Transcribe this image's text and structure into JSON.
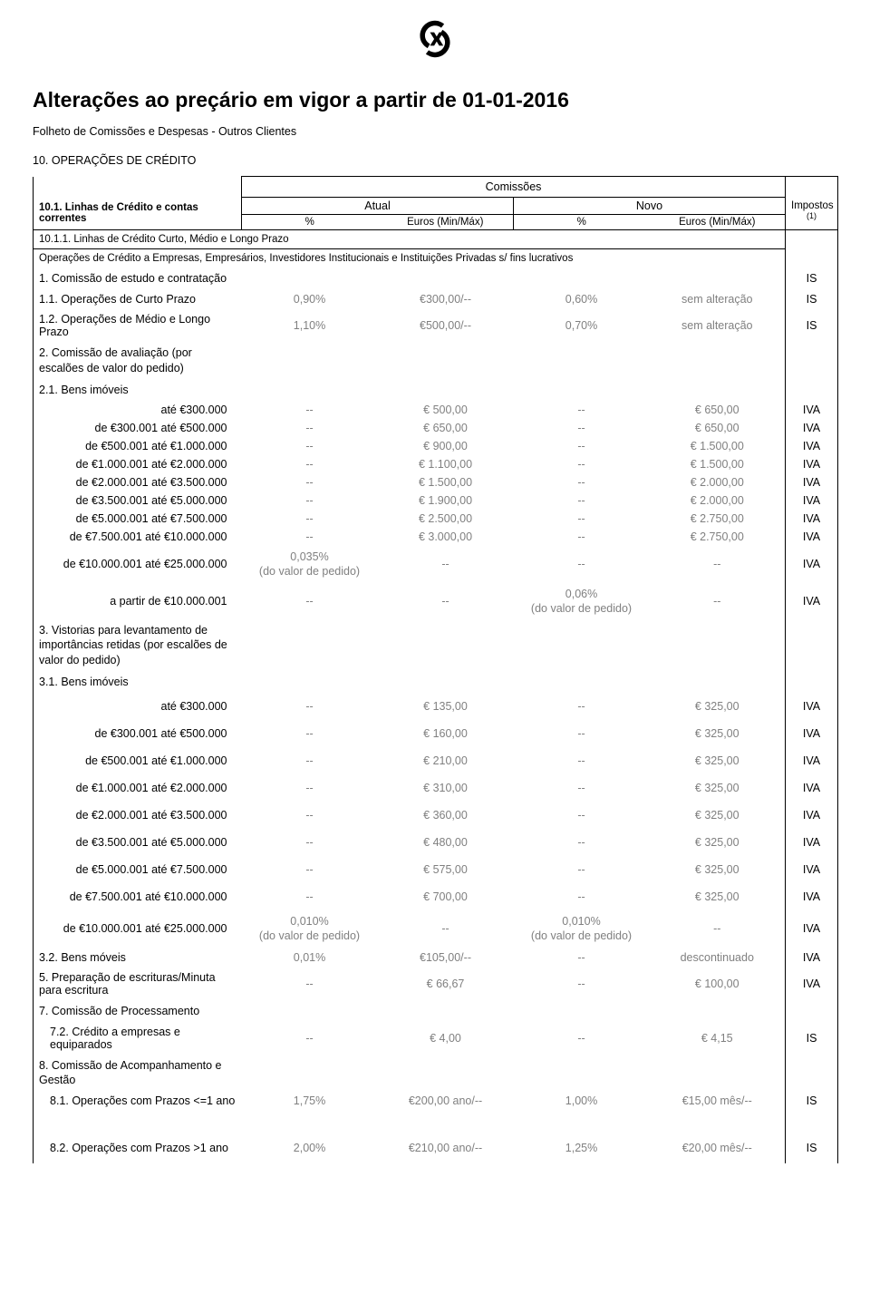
{
  "logo_color": "#000000",
  "title": "Alterações ao preçário em vigor a partir de 01-01-2016",
  "subtitle": "Folheto de Comissões e Despesas - Outros Clientes",
  "section": "10. OPERAÇÕES DE CRÉDITO",
  "headers": {
    "comissoes": "Comissões",
    "atual": "Atual",
    "novo": "Novo",
    "impostos": "Impostos",
    "impostos_sup": "(1)",
    "pct": "%",
    "eur": "Euros (Min/Máx)",
    "sub_title": "10.1. Linhas de Crédito e contas correntes",
    "sub_line": "10.1.1. Linhas de Crédito Curto, Médio e Longo Prazo",
    "ops_desc": "Operações de Crédito a Empresas, Empresários, Investidores Institucionais e Instituições Privadas s/ fins lucrativos"
  },
  "rows": [
    {
      "type": "section",
      "label": "1. Comissão de estudo e contratação",
      "tax": "IS"
    },
    {
      "type": "data",
      "label": "1.1. Operações de Curto Prazo",
      "a_pct": "0,90%",
      "a_eur": "€300,00/--",
      "n_pct": "0,60%",
      "n_eur": "sem alteração",
      "tax": "IS"
    },
    {
      "type": "data",
      "label": "1.2. Operações de Médio e Longo Prazo",
      "a_pct": "1,10%",
      "a_eur": "€500,00/--",
      "n_pct": "0,70%",
      "n_eur": "sem alteração",
      "tax": "IS"
    },
    {
      "type": "section",
      "label": "2. Comissão de avaliação (por escalões de valor do pedido)"
    },
    {
      "type": "section",
      "label": "2.1. Bens imóveis"
    },
    {
      "type": "tight",
      "label": "até €300.000",
      "a_pct": "--",
      "a_eur": "€ 500,00",
      "n_pct": "--",
      "n_eur": "€ 650,00",
      "tax": "IVA",
      "indent": true
    },
    {
      "type": "tight",
      "label": "de €300.001 até €500.000",
      "a_pct": "--",
      "a_eur": "€ 650,00",
      "n_pct": "--",
      "n_eur": "€ 650,00",
      "tax": "IVA",
      "indent": true
    },
    {
      "type": "tight",
      "label": "de €500.001 até €1.000.000",
      "a_pct": "--",
      "a_eur": "€ 900,00",
      "n_pct": "--",
      "n_eur": "€ 1.500,00",
      "tax": "IVA",
      "indent": true
    },
    {
      "type": "tight",
      "label": "de €1.000.001 até €2.000.000",
      "a_pct": "--",
      "a_eur": "€ 1.100,00",
      "n_pct": "--",
      "n_eur": "€ 1.500,00",
      "tax": "IVA",
      "indent": true
    },
    {
      "type": "tight",
      "label": "de €2.000.001 até €3.500.000",
      "a_pct": "--",
      "a_eur": "€ 1.500,00",
      "n_pct": "--",
      "n_eur": "€ 2.000,00",
      "tax": "IVA",
      "indent": true
    },
    {
      "type": "tight",
      "label": "de €3.500.001 até €5.000.000",
      "a_pct": "--",
      "a_eur": "€ 1.900,00",
      "n_pct": "--",
      "n_eur": "€ 2.000,00",
      "tax": "IVA",
      "indent": true
    },
    {
      "type": "tight",
      "label": "de €5.000.001 até €7.500.000",
      "a_pct": "--",
      "a_eur": "€ 2.500,00",
      "n_pct": "--",
      "n_eur": "€ 2.750,00",
      "tax": "IVA",
      "indent": true
    },
    {
      "type": "tight",
      "label": "de €7.500.001 até €10.000.000",
      "a_pct": "--",
      "a_eur": "€ 3.000,00",
      "n_pct": "--",
      "n_eur": "€ 2.750,00",
      "tax": "IVA",
      "indent": true
    },
    {
      "type": "data",
      "label": "de €10.000.001 até €25.000.000",
      "a_pct": "0,035%\n(do valor de pedido)",
      "a_eur": "--",
      "n_pct": "--",
      "n_eur": "--",
      "tax": "IVA",
      "indent": true
    },
    {
      "type": "data",
      "label": "a partir de €10.000.001",
      "a_pct": "--",
      "a_eur": "--",
      "n_pct": "0,06%\n(do valor de pedido)",
      "n_eur": "--",
      "tax": "IVA",
      "indent": true
    },
    {
      "type": "section",
      "label": "3. Vistorias para levantamento de importâncias retidas (por escalões de valor do pedido)"
    },
    {
      "type": "section",
      "label": "3.1. Bens imóveis"
    },
    {
      "type": "spaced",
      "label": "até €300.000",
      "a_pct": "--",
      "a_eur": "€ 135,00",
      "n_pct": "--",
      "n_eur": "€ 325,00",
      "tax": "IVA",
      "indent": true
    },
    {
      "type": "spaced",
      "label": "de €300.001 até €500.000",
      "a_pct": "--",
      "a_eur": "€ 160,00",
      "n_pct": "--",
      "n_eur": "€ 325,00",
      "tax": "IVA",
      "indent": true
    },
    {
      "type": "spaced",
      "label": "de €500.001 até €1.000.000",
      "a_pct": "--",
      "a_eur": "€ 210,00",
      "n_pct": "--",
      "n_eur": "€ 325,00",
      "tax": "IVA",
      "indent": true
    },
    {
      "type": "spaced",
      "label": "de €1.000.001 até €2.000.000",
      "a_pct": "--",
      "a_eur": "€ 310,00",
      "n_pct": "--",
      "n_eur": "€ 325,00",
      "tax": "IVA",
      "indent": true
    },
    {
      "type": "spaced",
      "label": "de €2.000.001 até €3.500.000",
      "a_pct": "--",
      "a_eur": "€ 360,00",
      "n_pct": "--",
      "n_eur": "€ 325,00",
      "tax": "IVA",
      "indent": true
    },
    {
      "type": "spaced",
      "label": "de €3.500.001 até €5.000.000",
      "a_pct": "--",
      "a_eur": "€ 480,00",
      "n_pct": "--",
      "n_eur": "€ 325,00",
      "tax": "IVA",
      "indent": true
    },
    {
      "type": "spaced",
      "label": "de €5.000.001 até €7.500.000",
      "a_pct": "--",
      "a_eur": "€ 575,00",
      "n_pct": "--",
      "n_eur": "€ 325,00",
      "tax": "IVA",
      "indent": true
    },
    {
      "type": "spaced",
      "label": "de €7.500.001 até €10.000.000",
      "a_pct": "--",
      "a_eur": "€ 700,00",
      "n_pct": "--",
      "n_eur": "€ 325,00",
      "tax": "IVA",
      "indent": true
    },
    {
      "type": "data",
      "label": "de €10.000.001 até €25.000.000",
      "a_pct": "0,010%\n(do valor de pedido)",
      "a_eur": "--",
      "n_pct": "0,010%\n(do valor de pedido)",
      "n_eur": "--",
      "tax": "IVA",
      "indent": true
    },
    {
      "type": "data",
      "label": "3.2. Bens móveis",
      "a_pct": "0,01%",
      "a_eur": "€105,00/--",
      "n_pct": "--",
      "n_eur": "descontinuado",
      "tax": "IVA"
    },
    {
      "type": "data",
      "label": "5. Preparação de escrituras/Minuta para escritura",
      "a_pct": "--",
      "a_eur": "€ 66,67",
      "n_pct": "--",
      "n_eur": "€ 100,00",
      "tax": "IVA"
    },
    {
      "type": "section",
      "label": "7. Comissão de Processamento"
    },
    {
      "type": "data",
      "label": "7.2. Crédito a empresas e equiparados",
      "a_pct": "--",
      "a_eur": "€ 4,00",
      "n_pct": "--",
      "n_eur": "€ 4,15",
      "tax": "IS",
      "sub": true
    },
    {
      "type": "section",
      "label": "8. Comissão de Acompanhamento e Gestão"
    },
    {
      "type": "data",
      "label": "8.1. Operações com Prazos <=1 ano",
      "a_pct": "1,75%",
      "a_eur": "€200,00 ano/--",
      "n_pct": "1,00%",
      "n_eur": "€15,00 mês/--",
      "tax": "IS",
      "sub": true
    },
    {
      "type": "bigspaced",
      "label": "8.2. Operações com Prazos >1 ano",
      "a_pct": "2,00%",
      "a_eur": "€210,00 ano/--",
      "n_pct": "1,25%",
      "n_eur": "€20,00 mês/--",
      "tax": "IS",
      "sub": true
    }
  ]
}
